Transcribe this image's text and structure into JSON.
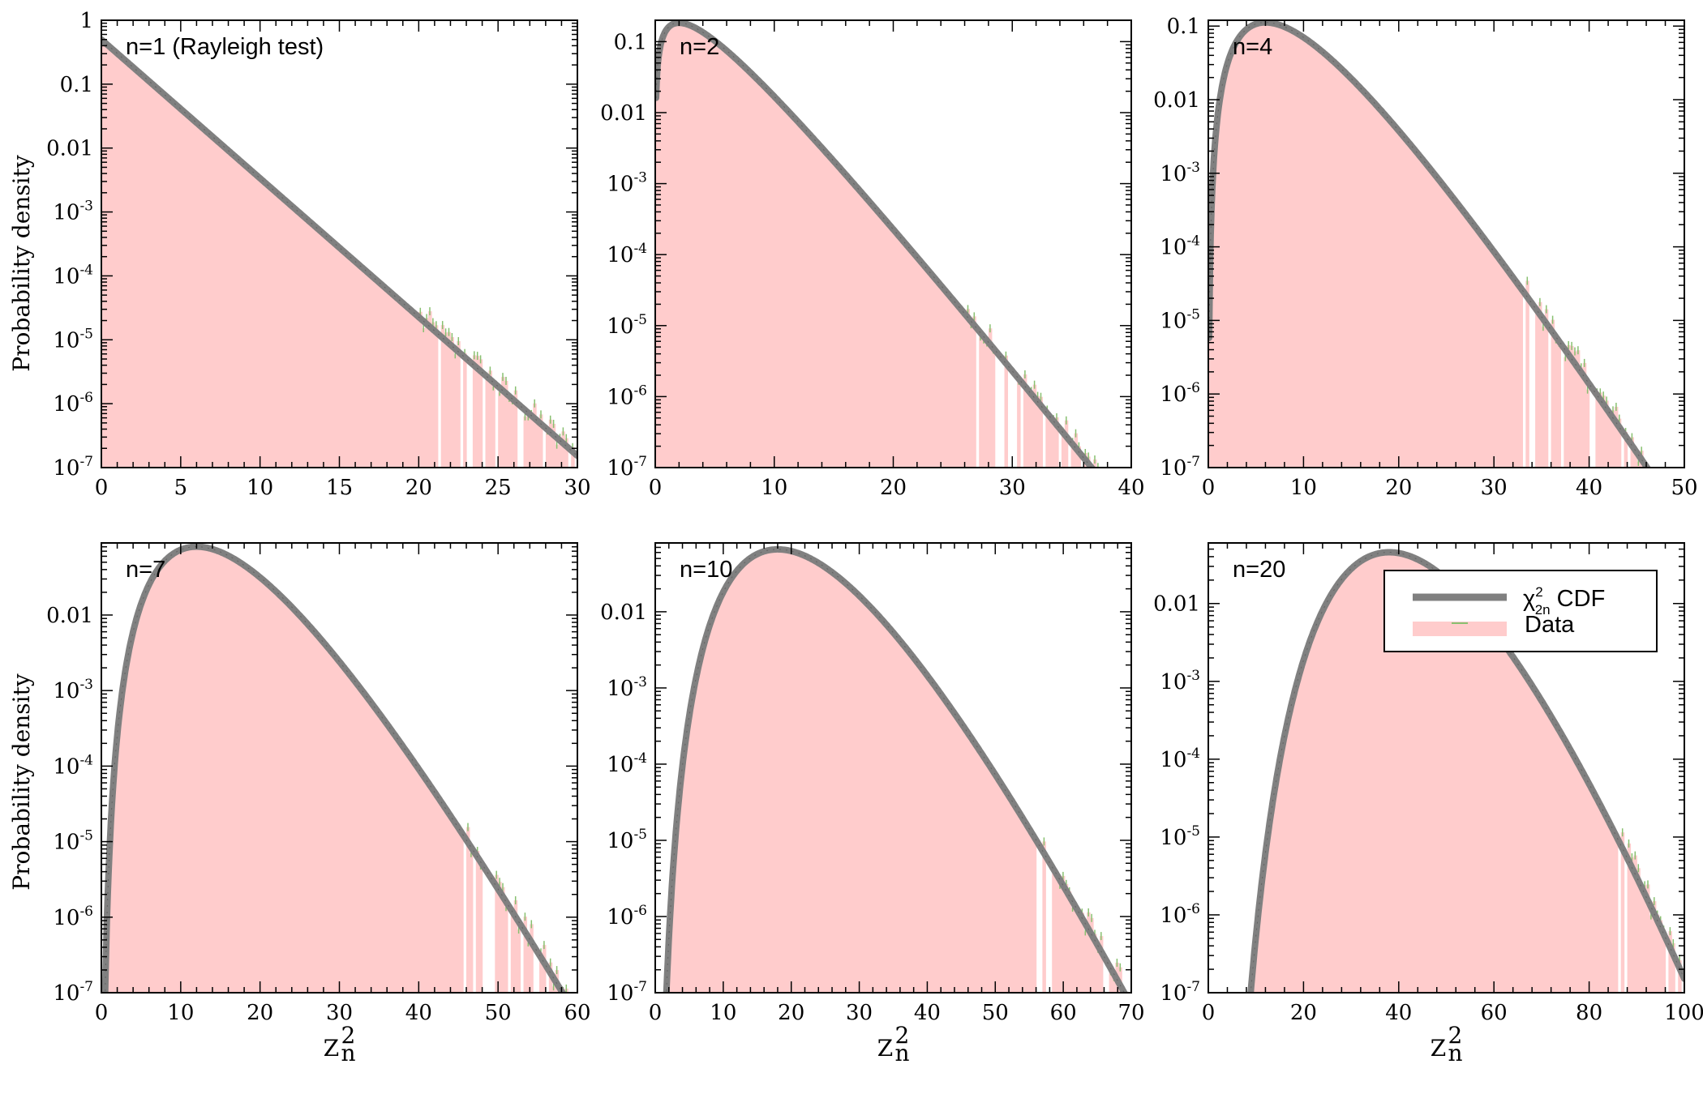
{
  "colors": {
    "model_line": "#808080",
    "data_fill": "#ffcccc",
    "data_errorbar": "#88c070",
    "axes": "#000000",
    "background": "#ffffff"
  },
  "figure": {
    "ylabel": "Probability density",
    "xlabel_base": "Z",
    "xlabel_sup": "2",
    "xlabel_sub": "n"
  },
  "legend": {
    "model_label_base": "χ",
    "model_label_sup": "2",
    "model_label_sub": "2n",
    "model_label_rest": " CDF",
    "data_label": "Data",
    "placement": "top-right of panel n=20"
  },
  "chart_data": [
    {
      "type": "area",
      "label": "n=1 (Rayleigh test)",
      "dof": 2,
      "xlim": [
        0,
        30
      ],
      "ylim": [
        1e-07,
        1
      ],
      "yscale": "log",
      "xticks": [
        0,
        5,
        10,
        15,
        20,
        25,
        30
      ],
      "yticks": [
        {
          "v": 1e-07,
          "b": "10",
          "e": "-7"
        },
        {
          "v": 1e-06,
          "b": "10",
          "e": "-6"
        },
        {
          "v": 1e-05,
          "b": "10",
          "e": "-5"
        },
        {
          "v": 0.0001,
          "b": "10",
          "e": "-4"
        },
        {
          "v": 0.001,
          "b": "10",
          "e": "-3"
        },
        {
          "v": 0.01,
          "b": "0.01",
          "e": ""
        },
        {
          "v": 0.1,
          "b": "0.1",
          "e": ""
        },
        {
          "v": 1,
          "b": "1",
          "e": ""
        }
      ],
      "series": [
        {
          "name": "χ²2n CDF",
          "kind": "line",
          "formula": "chi2_pdf(x, k=2)"
        },
        {
          "name": "Data",
          "kind": "histogram",
          "noisy_tail_start": 20
        }
      ]
    },
    {
      "type": "area",
      "label": "n=2",
      "dof": 4,
      "xlim": [
        0,
        40
      ],
      "ylim": [
        1e-07,
        0.2
      ],
      "yscale": "log",
      "xticks": [
        0,
        10,
        20,
        30,
        40
      ],
      "yticks": [
        {
          "v": 1e-07,
          "b": "10",
          "e": "-7"
        },
        {
          "v": 1e-06,
          "b": "10",
          "e": "-6"
        },
        {
          "v": 1e-05,
          "b": "10",
          "e": "-5"
        },
        {
          "v": 0.0001,
          "b": "10",
          "e": "-4"
        },
        {
          "v": 0.001,
          "b": "10",
          "e": "-3"
        },
        {
          "v": 0.01,
          "b": "0.01",
          "e": ""
        },
        {
          "v": 0.1,
          "b": "0.1",
          "e": ""
        }
      ],
      "series": [
        {
          "name": "χ²2n CDF",
          "kind": "line",
          "formula": "chi2_pdf(x, k=4)"
        },
        {
          "name": "Data",
          "kind": "histogram",
          "noisy_tail_start": 26
        }
      ]
    },
    {
      "type": "area",
      "label": "n=4",
      "dof": 8,
      "xlim": [
        0,
        50
      ],
      "ylim": [
        1e-07,
        0.12
      ],
      "yscale": "log",
      "xticks": [
        0,
        10,
        20,
        30,
        40,
        50
      ],
      "yticks": [
        {
          "v": 1e-07,
          "b": "10",
          "e": "-7"
        },
        {
          "v": 1e-06,
          "b": "10",
          "e": "-6"
        },
        {
          "v": 1e-05,
          "b": "10",
          "e": "-5"
        },
        {
          "v": 0.0001,
          "b": "10",
          "e": "-4"
        },
        {
          "v": 0.001,
          "b": "10",
          "e": "-3"
        },
        {
          "v": 0.01,
          "b": "0.01",
          "e": ""
        },
        {
          "v": 0.1,
          "b": "0.1",
          "e": ""
        }
      ],
      "series": [
        {
          "name": "χ²2n CDF",
          "kind": "line",
          "formula": "chi2_pdf(x, k=8)"
        },
        {
          "name": "Data",
          "kind": "histogram",
          "noisy_tail_start": 33
        }
      ]
    },
    {
      "type": "area",
      "label": "n=7",
      "dof": 14,
      "xlim": [
        0,
        60
      ],
      "ylim": [
        1e-07,
        0.09
      ],
      "yscale": "log",
      "xticks": [
        0,
        10,
        20,
        30,
        40,
        50,
        60
      ],
      "yticks": [
        {
          "v": 1e-07,
          "b": "10",
          "e": "-7"
        },
        {
          "v": 1e-06,
          "b": "10",
          "e": "-6"
        },
        {
          "v": 1e-05,
          "b": "10",
          "e": "-5"
        },
        {
          "v": 0.0001,
          "b": "10",
          "e": "-4"
        },
        {
          "v": 0.001,
          "b": "10",
          "e": "-3"
        },
        {
          "v": 0.01,
          "b": "0.01",
          "e": ""
        }
      ],
      "series": [
        {
          "name": "χ²2n CDF",
          "kind": "line",
          "formula": "chi2_pdf(x, k=14)"
        },
        {
          "name": "Data",
          "kind": "histogram",
          "noisy_tail_start": 45
        }
      ]
    },
    {
      "type": "area",
      "label": "n=10",
      "dof": 20,
      "xlim": [
        0,
        70
      ],
      "ylim": [
        1e-07,
        0.08
      ],
      "yscale": "log",
      "xticks": [
        0,
        10,
        20,
        30,
        40,
        50,
        60,
        70
      ],
      "yticks": [
        {
          "v": 1e-07,
          "b": "10",
          "e": "-7"
        },
        {
          "v": 1e-06,
          "b": "10",
          "e": "-6"
        },
        {
          "v": 1e-05,
          "b": "10",
          "e": "-5"
        },
        {
          "v": 0.0001,
          "b": "10",
          "e": "-4"
        },
        {
          "v": 0.001,
          "b": "10",
          "e": "-3"
        },
        {
          "v": 0.01,
          "b": "0.01",
          "e": ""
        }
      ],
      "series": [
        {
          "name": "χ²2n CDF",
          "kind": "line",
          "formula": "chi2_pdf(x, k=20)"
        },
        {
          "name": "Data",
          "kind": "histogram",
          "noisy_tail_start": 56
        }
      ]
    },
    {
      "type": "area",
      "label": "n=20",
      "dof": 40,
      "xlim": [
        0,
        100
      ],
      "ylim": [
        1e-07,
        0.06
      ],
      "yscale": "log",
      "xticks": [
        0,
        20,
        40,
        60,
        80,
        100
      ],
      "yticks": [
        {
          "v": 1e-07,
          "b": "10",
          "e": "-7"
        },
        {
          "v": 1e-06,
          "b": "10",
          "e": "-6"
        },
        {
          "v": 1e-05,
          "b": "10",
          "e": "-5"
        },
        {
          "v": 0.0001,
          "b": "10",
          "e": "-4"
        },
        {
          "v": 0.001,
          "b": "10",
          "e": "-3"
        },
        {
          "v": 0.01,
          "b": "0.01",
          "e": ""
        }
      ],
      "series": [
        {
          "name": "χ²2n CDF",
          "kind": "line",
          "formula": "chi2_pdf(x, k=40)"
        },
        {
          "name": "Data",
          "kind": "histogram",
          "noisy_tail_start": 86
        }
      ]
    }
  ]
}
